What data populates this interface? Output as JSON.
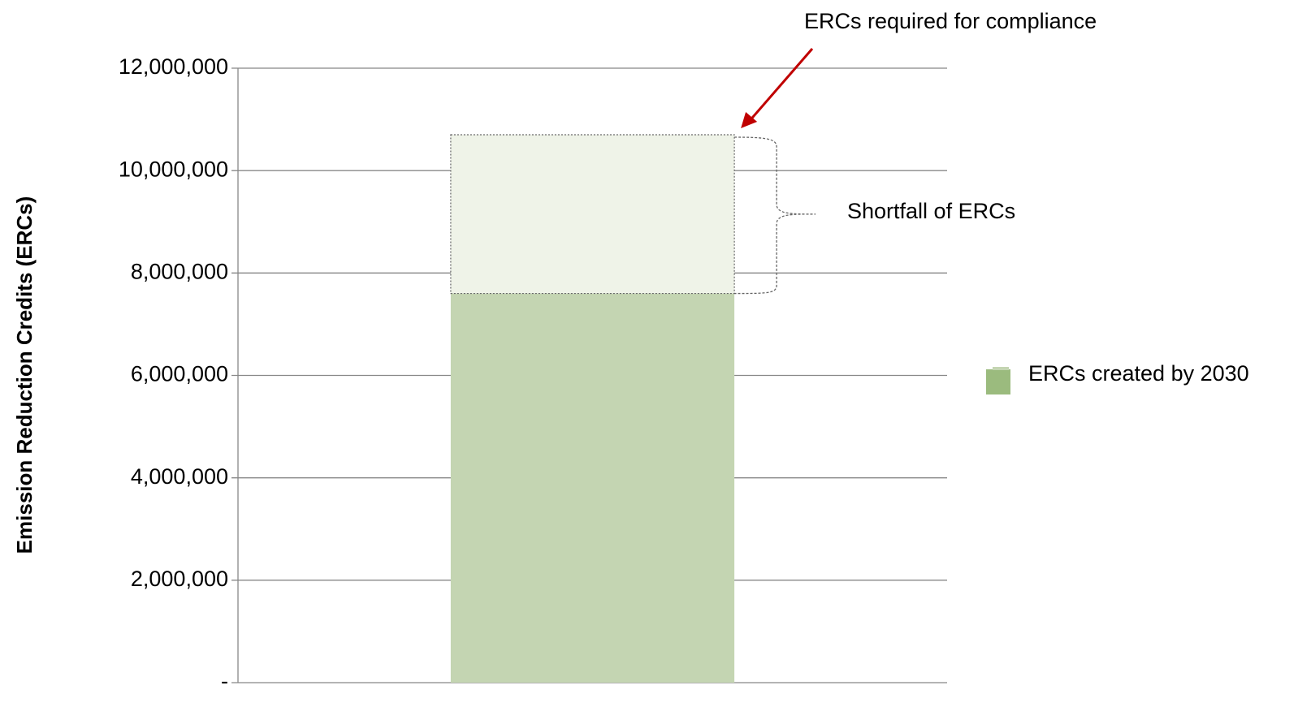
{
  "chart_data": {
    "type": "stacked_bar",
    "y_label": "Emission Reduction Credits (ERCs)",
    "categories": [
      null
    ],
    "series": [
      {
        "name": "ERCs created by 2030",
        "color": "#c4d5b2",
        "values": [
          7600000
        ]
      },
      {
        "color": "#eff3e8",
        "values": [
          3100000
        ]
      }
    ],
    "annotations": [
      "ERCs required for compliance",
      "Shortfall of ERCs"
    ],
    "legend": "right",
    "legend_color": "#9bbb7e",
    "annotation_color": "#c00000",
    "ylim": [
      0,
      12000000
    ],
    "yticks": [
      {
        "value": 0,
        "label": "-"
      },
      {
        "value": 2000000,
        "label": "2,000,000"
      },
      {
        "value": 4000000,
        "label": "4,000,000"
      },
      {
        "value": 6000000,
        "label": "6,000,000"
      },
      {
        "value": 8000000,
        "label": "8,000,000"
      },
      {
        "value": 10000000,
        "label": "10,000,000"
      },
      {
        "value": 12000000,
        "label": "12,000,000"
      }
    ],
    "grid": true
  }
}
